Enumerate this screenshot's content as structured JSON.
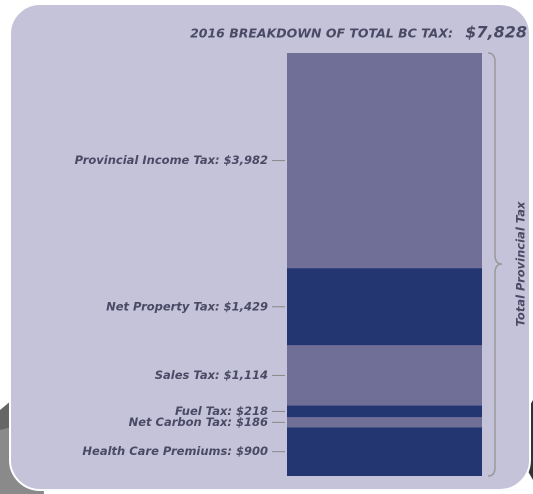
{
  "chart_data": {
    "type": "stacked-bar",
    "title": "2016 BREAKDOWN OF TOTAL BC TAX:",
    "total": "$7,828",
    "side_label": "Total Provincial Tax",
    "categories": [
      "Provincial Income Tax: $3,982",
      "Net Property Tax: $1,429",
      "Sales Tax: $1,114",
      "Fuel Tax: $218",
      "Net Carbon Tax: $186",
      "Health Care Premiums: $900"
    ],
    "values": [
      3982,
      1429,
      1114,
      218,
      186,
      900
    ],
    "colors": [
      "#6f6f97",
      "#243672",
      "#6f6f97",
      "#243672",
      "#6f6f97",
      "#243672"
    ]
  }
}
